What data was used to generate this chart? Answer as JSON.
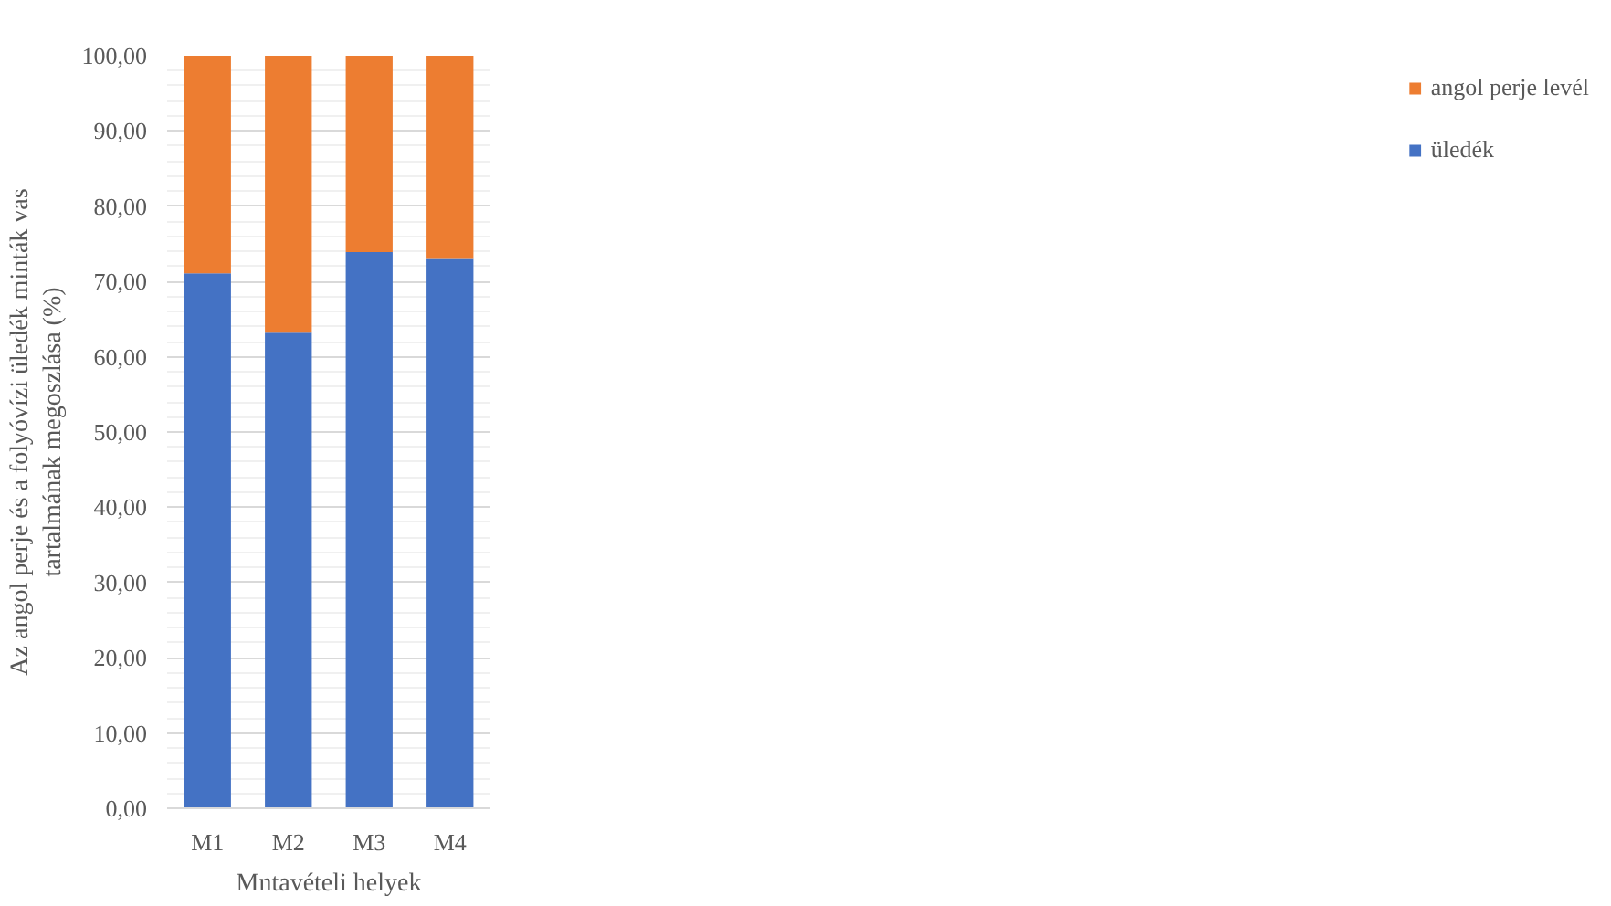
{
  "chart_data": {
    "type": "bar",
    "stacked": true,
    "categories": [
      "M1",
      "M2",
      "M3",
      "M4"
    ],
    "series": [
      {
        "name": "üledék",
        "color": "#4472c4",
        "values": [
          71.1,
          63.2,
          73.9,
          73.0
        ]
      },
      {
        "name": "angol perje levél",
        "color": "#ed7d31",
        "values": [
          28.9,
          36.8,
          26.1,
          27.0
        ]
      }
    ],
    "xlabel": "Mntavételi helyek",
    "ylabel": "Az angol perje és a folyóvízi üledék minták vas\ntartalmának megoszlása (%)",
    "ylim": [
      0,
      100
    ],
    "yticks": [
      {
        "value": 0,
        "label": "0,00"
      },
      {
        "value": 2,
        "label": null
      },
      {
        "value": 4,
        "label": null
      },
      {
        "value": 6,
        "label": null
      },
      {
        "value": 8,
        "label": null
      },
      {
        "value": 10,
        "label": "10,00"
      },
      {
        "value": 12,
        "label": null
      },
      {
        "value": 14,
        "label": null
      },
      {
        "value": 16,
        "label": null
      },
      {
        "value": 18,
        "label": null
      },
      {
        "value": 20,
        "label": "20,00"
      },
      {
        "value": 22,
        "label": null
      },
      {
        "value": 24,
        "label": null
      },
      {
        "value": 26,
        "label": null
      },
      {
        "value": 28,
        "label": null
      },
      {
        "value": 30,
        "label": "30,00"
      },
      {
        "value": 32,
        "label": null
      },
      {
        "value": 34,
        "label": null
      },
      {
        "value": 36,
        "label": null
      },
      {
        "value": 38,
        "label": null
      },
      {
        "value": 40,
        "label": "40,00"
      },
      {
        "value": 42,
        "label": null
      },
      {
        "value": 44,
        "label": null
      },
      {
        "value": 46,
        "label": null
      },
      {
        "value": 48,
        "label": null
      },
      {
        "value": 50,
        "label": "50,00"
      },
      {
        "value": 52,
        "label": null
      },
      {
        "value": 54,
        "label": null
      },
      {
        "value": 56,
        "label": null
      },
      {
        "value": 58,
        "label": null
      },
      {
        "value": 60,
        "label": "60,00"
      },
      {
        "value": 62,
        "label": null
      },
      {
        "value": 64,
        "label": null
      },
      {
        "value": 66,
        "label": null
      },
      {
        "value": 68,
        "label": null
      },
      {
        "value": 70,
        "label": "70,00"
      },
      {
        "value": 72,
        "label": null
      },
      {
        "value": 74,
        "label": null
      },
      {
        "value": 76,
        "label": null
      },
      {
        "value": 78,
        "label": null
      },
      {
        "value": 80,
        "label": "80,00"
      },
      {
        "value": 82,
        "label": null
      },
      {
        "value": 84,
        "label": null
      },
      {
        "value": 86,
        "label": null
      },
      {
        "value": 88,
        "label": null
      },
      {
        "value": 90,
        "label": "90,00"
      },
      {
        "value": 92,
        "label": null
      },
      {
        "value": 94,
        "label": null
      },
      {
        "value": 96,
        "label": null
      },
      {
        "value": 98,
        "label": null
      },
      {
        "value": 100,
        "label": "100,00"
      }
    ],
    "grid": "y",
    "legend": "right"
  }
}
